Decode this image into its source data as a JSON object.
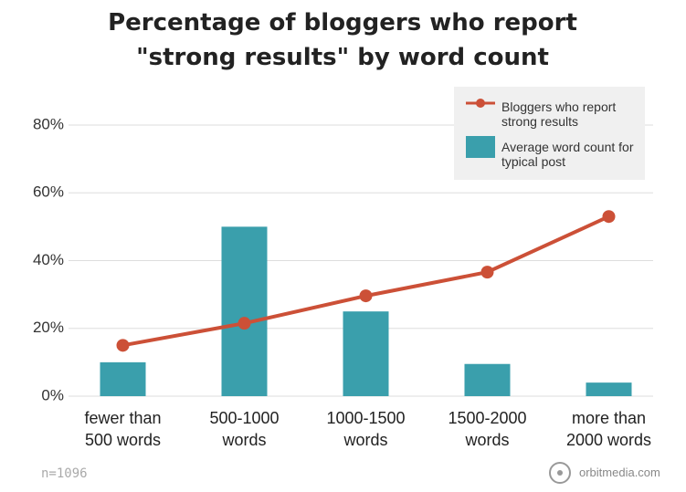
{
  "chart_data": {
    "type": "combo",
    "title": "Percentage of bloggers who report \"strong results\" by word count",
    "categories": [
      "fewer than 500 words",
      "500-1000 words",
      "1000-1500 words",
      "1500-2000 words",
      "more than 2000 words"
    ],
    "series": [
      {
        "name": "Average word count for typical post",
        "type": "bar",
        "color": "#3a9fac",
        "values": [
          10,
          50,
          25,
          9.5,
          4
        ]
      },
      {
        "name": "Bloggers who report strong results",
        "type": "line",
        "color": "#cc5037",
        "values": [
          15,
          21.5,
          29.6,
          36.6,
          53
        ]
      }
    ],
    "ylim": [
      0,
      80
    ],
    "yticks": [
      {
        "value": 0,
        "label": "0%"
      },
      {
        "value": 20,
        "label": "20%"
      },
      {
        "value": 40,
        "label": "40%"
      },
      {
        "value": 60,
        "label": "60%"
      },
      {
        "value": 80,
        "label": "80%"
      }
    ],
    "grid": true,
    "legend": "top-right",
    "note": "n=1096",
    "source": "orbitmedia.com"
  }
}
